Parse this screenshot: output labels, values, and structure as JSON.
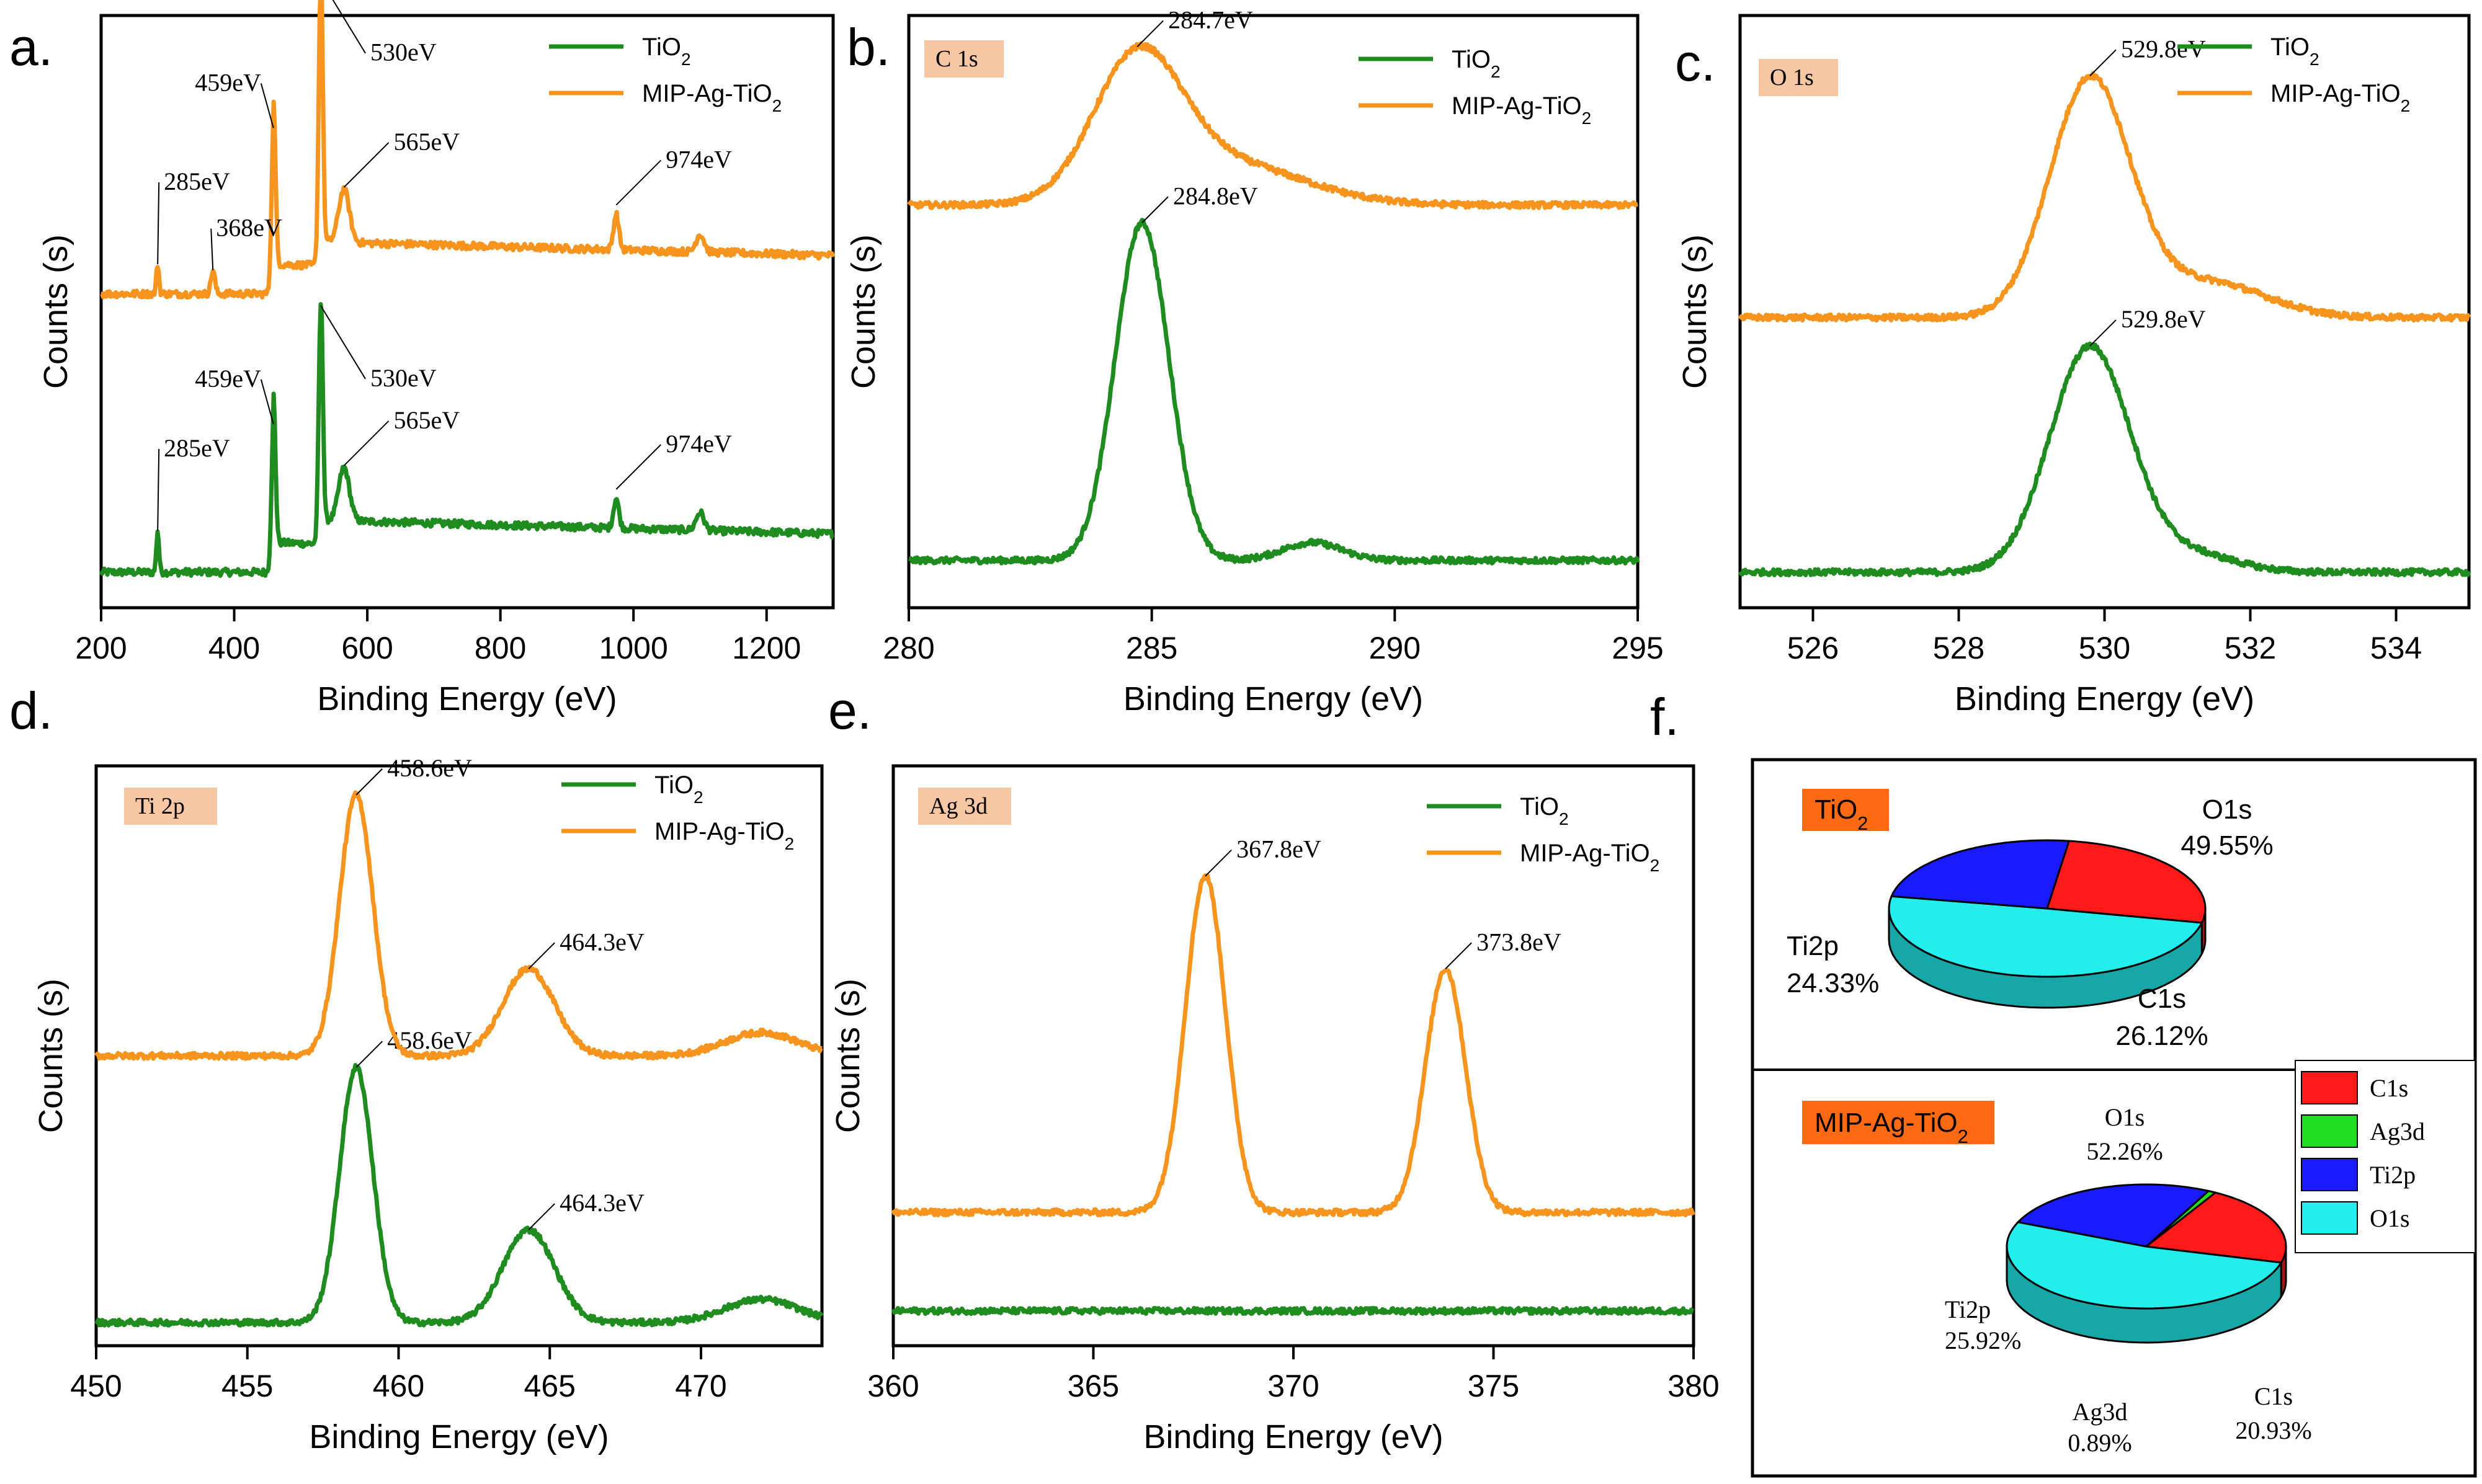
{
  "colors": {
    "tio2": "#1e8c1e",
    "mip": "#f7941d",
    "tag": "#f7c6a3",
    "pieTag": "#ff6a13"
  },
  "chart_data": [
    {
      "type": "line",
      "id": "a",
      "panel_label": "a.",
      "title": "",
      "xlabel": "Binding Energy (eV)",
      "ylabel": "Counts (s)",
      "xlim": [
        200,
        1300
      ],
      "xticks": [
        "200",
        "400",
        "600",
        "800",
        "1000",
        "1200"
      ],
      "series": [
        {
          "name": "TiO2",
          "name_base": "TiO",
          "name_sub": "2",
          "baseline": 0.06,
          "peaks": [
            [
              285,
              0.07,
              2
            ],
            [
              459,
              0.25,
              3
            ],
            [
              530,
              0.4,
              3
            ],
            [
              565,
              0.09,
              8
            ],
            [
              974,
              0.05,
              4
            ],
            [
              1100,
              0.03,
              6
            ]
          ]
        },
        {
          "name": "MIP-Ag-TiO2",
          "name_base": "MIP-Ag-TiO",
          "name_sub": "2",
          "baseline": 0.53,
          "peaks": [
            [
              285,
              0.05,
              2
            ],
            [
              368,
              0.04,
              3
            ],
            [
              459,
              0.28,
              3
            ],
            [
              530,
              0.48,
              3
            ],
            [
              565,
              0.09,
              8
            ],
            [
              974,
              0.06,
              4
            ],
            [
              1100,
              0.03,
              6
            ]
          ]
        }
      ],
      "annotations": [
        {
          "text": "459eV",
          "series": 1
        },
        {
          "text": "530eV",
          "series": 1
        },
        {
          "text": "285eV",
          "series": 1
        },
        {
          "text": "368eV",
          "series": 1
        },
        {
          "text": "565eV",
          "series": 1
        },
        {
          "text": "974eV",
          "series": 1
        },
        {
          "text": "459eV",
          "series": 0
        },
        {
          "text": "530eV",
          "series": 0
        },
        {
          "text": "285eV",
          "series": 0
        },
        {
          "text": "565eV",
          "series": 0
        },
        {
          "text": "974eV",
          "series": 0
        }
      ]
    },
    {
      "type": "line",
      "id": "b",
      "panel_label": "b.",
      "tag": "C 1s",
      "xlabel": "Binding Energy (eV)",
      "ylabel": "Counts (s)",
      "xlim": [
        280,
        295
      ],
      "xticks": [
        "280",
        "285",
        "290",
        "295"
      ],
      "series": [
        {
          "name": "TiO2",
          "name_base": "TiO",
          "name_sub": "2",
          "baseline": 0.08,
          "peaks": [
            [
              284.8,
              0.57,
              0.55
            ],
            [
              288.3,
              0.03,
              0.6
            ]
          ]
        },
        {
          "name": "MIP-Ag-TiO2",
          "name_base": "MIP-Ag-TiO",
          "name_sub": "2",
          "baseline": 0.68,
          "peaks": [
            [
              284.7,
              0.23,
              0.9
            ],
            [
              286.5,
              0.07,
              1.6
            ]
          ]
        }
      ],
      "annotations": [
        {
          "text": "284.7eV",
          "series": 1
        },
        {
          "text": "284.8eV",
          "series": 0
        }
      ]
    },
    {
      "type": "line",
      "id": "c",
      "panel_label": "c.",
      "tag": "O 1s",
      "xlabel": "Binding Energy (eV)",
      "ylabel": "Counts (s)",
      "xlim": [
        525,
        535
      ],
      "xticks": [
        "526",
        "528",
        "530",
        "532",
        "534"
      ],
      "series": [
        {
          "name": "TiO2",
          "name_base": "TiO",
          "name_sub": "2",
          "baseline": 0.06,
          "peaks": [
            [
              529.8,
              0.38,
              0.55
            ],
            [
              531.2,
              0.03,
              0.6
            ]
          ]
        },
        {
          "name": "MIP-Ag-TiO2",
          "name_base": "MIP-Ag-TiO",
          "name_sub": "2",
          "baseline": 0.49,
          "peaks": [
            [
              529.8,
              0.4,
              0.55
            ],
            [
              531.4,
              0.06,
              0.8
            ]
          ]
        }
      ],
      "annotations": [
        {
          "text": "529.8eV",
          "series": 1
        },
        {
          "text": "529.8eV",
          "series": 0
        }
      ]
    },
    {
      "type": "line",
      "id": "d",
      "panel_label": "d.",
      "tag": "Ti 2p",
      "xlabel": "Binding Energy (eV)",
      "ylabel": "Counts (s)",
      "xlim": [
        450,
        474
      ],
      "xticks": [
        "450",
        "455",
        "460",
        "465",
        "470"
      ],
      "series": [
        {
          "name": "TiO2",
          "name_base": "TiO",
          "name_sub": "2",
          "baseline": 0.04,
          "peaks": [
            [
              458.6,
              0.44,
              0.55
            ],
            [
              464.3,
              0.16,
              0.85
            ],
            [
              472,
              0.04,
              1.2
            ]
          ]
        },
        {
          "name": "MIP-Ag-TiO2",
          "name_base": "MIP-Ag-TiO",
          "name_sub": "2",
          "baseline": 0.5,
          "peaks": [
            [
              458.6,
              0.45,
              0.55
            ],
            [
              464.3,
              0.15,
              0.85
            ],
            [
              472,
              0.04,
              1.2
            ]
          ]
        }
      ],
      "annotations": [
        {
          "text": "458.6eV",
          "series": 1
        },
        {
          "text": "464.3eV",
          "series": 1
        },
        {
          "text": "458.6eV",
          "series": 0
        },
        {
          "text": "464.3eV",
          "series": 0
        }
      ]
    },
    {
      "type": "line",
      "id": "e",
      "panel_label": "e.",
      "tag": "Ag 3d",
      "xlabel": "Binding Energy (eV)",
      "ylabel": "Counts (s)",
      "xlim": [
        360,
        380
      ],
      "xticks": [
        "360",
        "365",
        "370",
        "375",
        "380"
      ],
      "series": [
        {
          "name": "TiO2",
          "name_base": "TiO",
          "name_sub": "2",
          "baseline": 0.06,
          "peaks": []
        },
        {
          "name": "MIP-Ag-TiO2",
          "name_base": "MIP-Ag-TiO",
          "name_sub": "2",
          "baseline": 0.23,
          "peaks": [
            [
              367.8,
              0.58,
              0.5
            ],
            [
              373.8,
              0.42,
              0.5
            ]
          ]
        }
      ],
      "annotations": [
        {
          "text": "367.8eV",
          "series": 1
        },
        {
          "text": "373.8eV",
          "series": 1
        }
      ]
    },
    {
      "type": "pie",
      "id": "f",
      "panel_label": "f.",
      "pies": [
        {
          "title": "TiO2",
          "title_base": "TiO",
          "title_sub": "2",
          "slices": [
            {
              "label": "O1s",
              "value": 49.55,
              "pct": "49.55%"
            },
            {
              "label": "Ti2p",
              "value": 24.33,
              "pct": "24.33%"
            },
            {
              "label": "C1s",
              "value": 26.12,
              "pct": "26.12%"
            }
          ]
        },
        {
          "title": "MIP-Ag-TiO2",
          "title_base": "MIP-Ag-TiO",
          "title_sub": "2",
          "slices": [
            {
              "label": "O1s",
              "value": 52.26,
              "pct": "52.26%"
            },
            {
              "label": "Ti2p",
              "value": 25.92,
              "pct": "25.92%"
            },
            {
              "label": "Ag3d",
              "value": 0.89,
              "pct": "0.89%"
            },
            {
              "label": "C1s",
              "value": 20.93,
              "pct": "20.93%"
            }
          ]
        }
      ],
      "legend": [
        {
          "label": "C1s",
          "color": "#ff1a1a"
        },
        {
          "label": "Ag3d",
          "color": "#22dd22"
        },
        {
          "label": "Ti2p",
          "color": "#1a1aff"
        },
        {
          "label": "O1s",
          "color": "#22eeee"
        }
      ]
    }
  ]
}
